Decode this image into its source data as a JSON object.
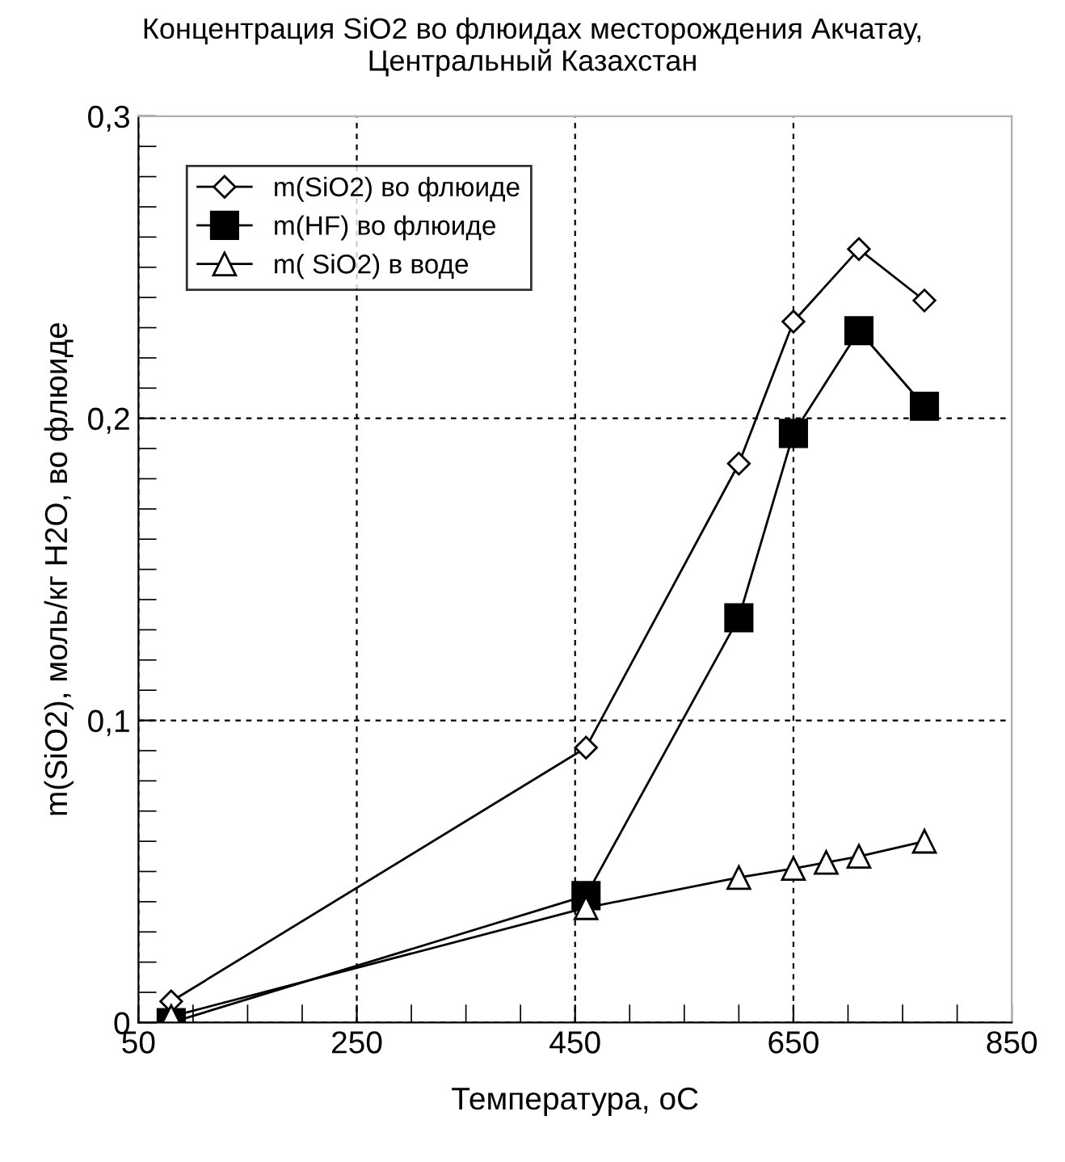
{
  "chart_data": {
    "type": "line",
    "title": "Концентрация SiO2 во флюидах месторождения Акчатау,\nЦентральный Казахстан",
    "xlabel": "Температура, оС",
    "ylabel": "m(SiO2), моль/кг H2O, во флюиде",
    "xlim": [
      50,
      850
    ],
    "ylim": [
      0,
      0.3
    ],
    "xticks": [
      50,
      {
        "value": 100,
        "label": null
      },
      {
        "value": 150,
        "label": null
      },
      {
        "value": 200,
        "label": null
      },
      250,
      {
        "value": 300,
        "label": null
      },
      {
        "value": 350,
        "label": null
      },
      {
        "value": 400,
        "label": null
      },
      450,
      {
        "value": 500,
        "label": null
      },
      {
        "value": 550,
        "label": null
      },
      {
        "value": 600,
        "label": null
      },
      650,
      {
        "value": 700,
        "label": null
      },
      {
        "value": 750,
        "label": null
      },
      {
        "value": 800,
        "label": null
      },
      850
    ],
    "yticks": [
      {
        "value": 0,
        "label": "0"
      },
      {
        "value": 0.01,
        "label": null
      },
      {
        "value": 0.02,
        "label": null
      },
      {
        "value": 0.03,
        "label": null
      },
      {
        "value": 0.04,
        "label": null
      },
      {
        "value": 0.05,
        "label": null
      },
      {
        "value": 0.06,
        "label": null
      },
      {
        "value": 0.07,
        "label": null
      },
      {
        "value": 0.08,
        "label": null
      },
      {
        "value": 0.09,
        "label": null
      },
      {
        "value": 0.1,
        "label": "0,1"
      },
      {
        "value": 0.11,
        "label": null
      },
      {
        "value": 0.12,
        "label": null
      },
      {
        "value": 0.13,
        "label": null
      },
      {
        "value": 0.14,
        "label": null
      },
      {
        "value": 0.15,
        "label": null
      },
      {
        "value": 0.16,
        "label": null
      },
      {
        "value": 0.17,
        "label": null
      },
      {
        "value": 0.18,
        "label": null
      },
      {
        "value": 0.19,
        "label": null
      },
      {
        "value": 0.2,
        "label": "0,2"
      },
      {
        "value": 0.21,
        "label": null
      },
      {
        "value": 0.22,
        "label": null
      },
      {
        "value": 0.23,
        "label": null
      },
      {
        "value": 0.24,
        "label": null
      },
      {
        "value": 0.25,
        "label": null
      },
      {
        "value": 0.26,
        "label": null
      },
      {
        "value": 0.27,
        "label": null
      },
      {
        "value": 0.28,
        "label": null
      },
      {
        "value": 0.29,
        "label": null
      },
      {
        "value": 0.3,
        "label": "0,3"
      }
    ],
    "grid": true,
    "legend": "top left",
    "line_style": "solid",
    "series": [
      {
        "name": "m(SiO2) во флюиде",
        "color": "#000000",
        "marker": "diamond",
        "x": [
          80,
          460,
          600,
          650,
          710,
          770
        ],
        "values": [
          0.007,
          0.091,
          0.185,
          0.232,
          0.256,
          0.239
        ]
      },
      {
        "name": "m(HF) во флюиде",
        "color": "#000000",
        "marker": "square",
        "x": [
          80,
          460,
          600,
          650,
          710,
          770
        ],
        "values": [
          0.0,
          0.042,
          0.134,
          0.195,
          0.229,
          0.204
        ]
      },
      {
        "name": "m( SiO2) в воде",
        "color": "#000000",
        "marker": "triangle",
        "x": [
          80,
          460,
          600,
          650,
          680,
          710,
          770
        ],
        "values": [
          0.002,
          0.038,
          0.048,
          0.051,
          0.053,
          0.055,
          0.06
        ]
      }
    ]
  }
}
